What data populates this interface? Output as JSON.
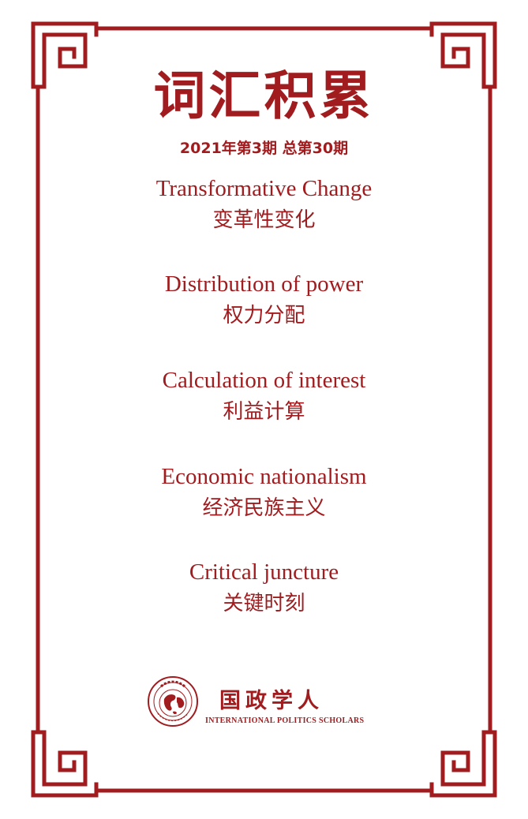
{
  "title": "词汇积累",
  "issue": "2021年第3期  总第30期",
  "terms": [
    {
      "en": "Transformative Change",
      "zh": "变革性变化"
    },
    {
      "en": "Distribution of power",
      "zh": "权力分配"
    },
    {
      "en": "Calculation of interest",
      "zh": "利益计算"
    },
    {
      "en": "Economic nationalism",
      "zh": "经济民族主义"
    },
    {
      "en": "Critical juncture",
      "zh": "关键时刻"
    }
  ],
  "logo": {
    "name": "国政学人",
    "english": "INTERNATIONAL POLITICS SCHOLARS"
  },
  "colors": {
    "accent": "#a01c1f",
    "background": "#ffffff"
  }
}
